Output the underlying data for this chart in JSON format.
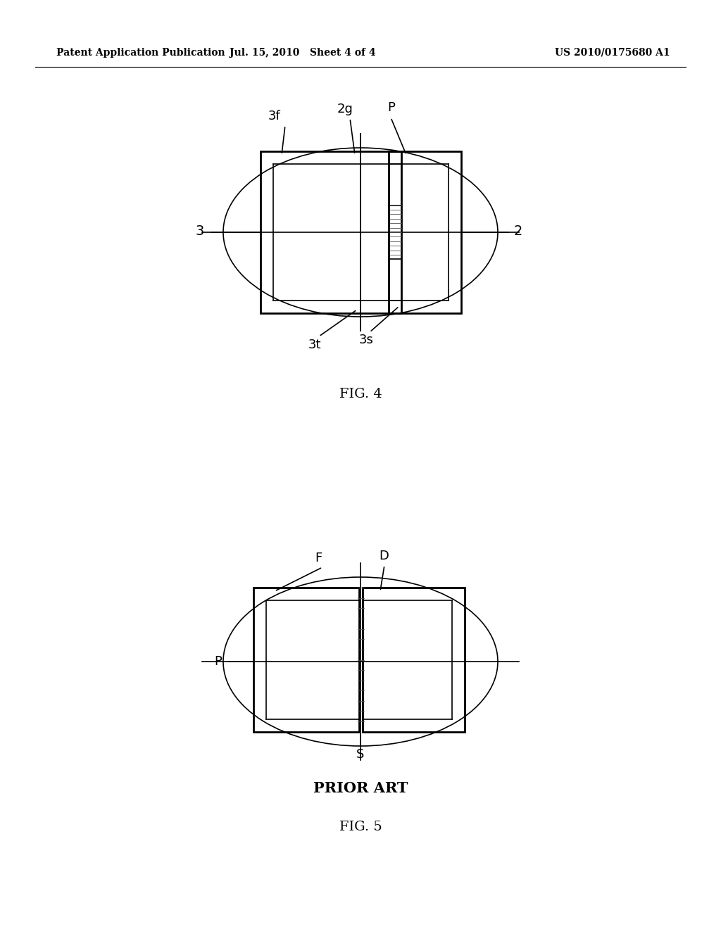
{
  "header_left": "Patent Application Publication",
  "header_mid": "Jul. 15, 2010   Sheet 4 of 4",
  "header_right": "US 2010/0175680 A1",
  "fig4_label": "FIG. 4",
  "fig5_label": "FIG. 5",
  "prior_art_label": "PRIOR ART",
  "bg_color": "#ffffff",
  "line_color": "#000000",
  "hatch_color": "#555555"
}
